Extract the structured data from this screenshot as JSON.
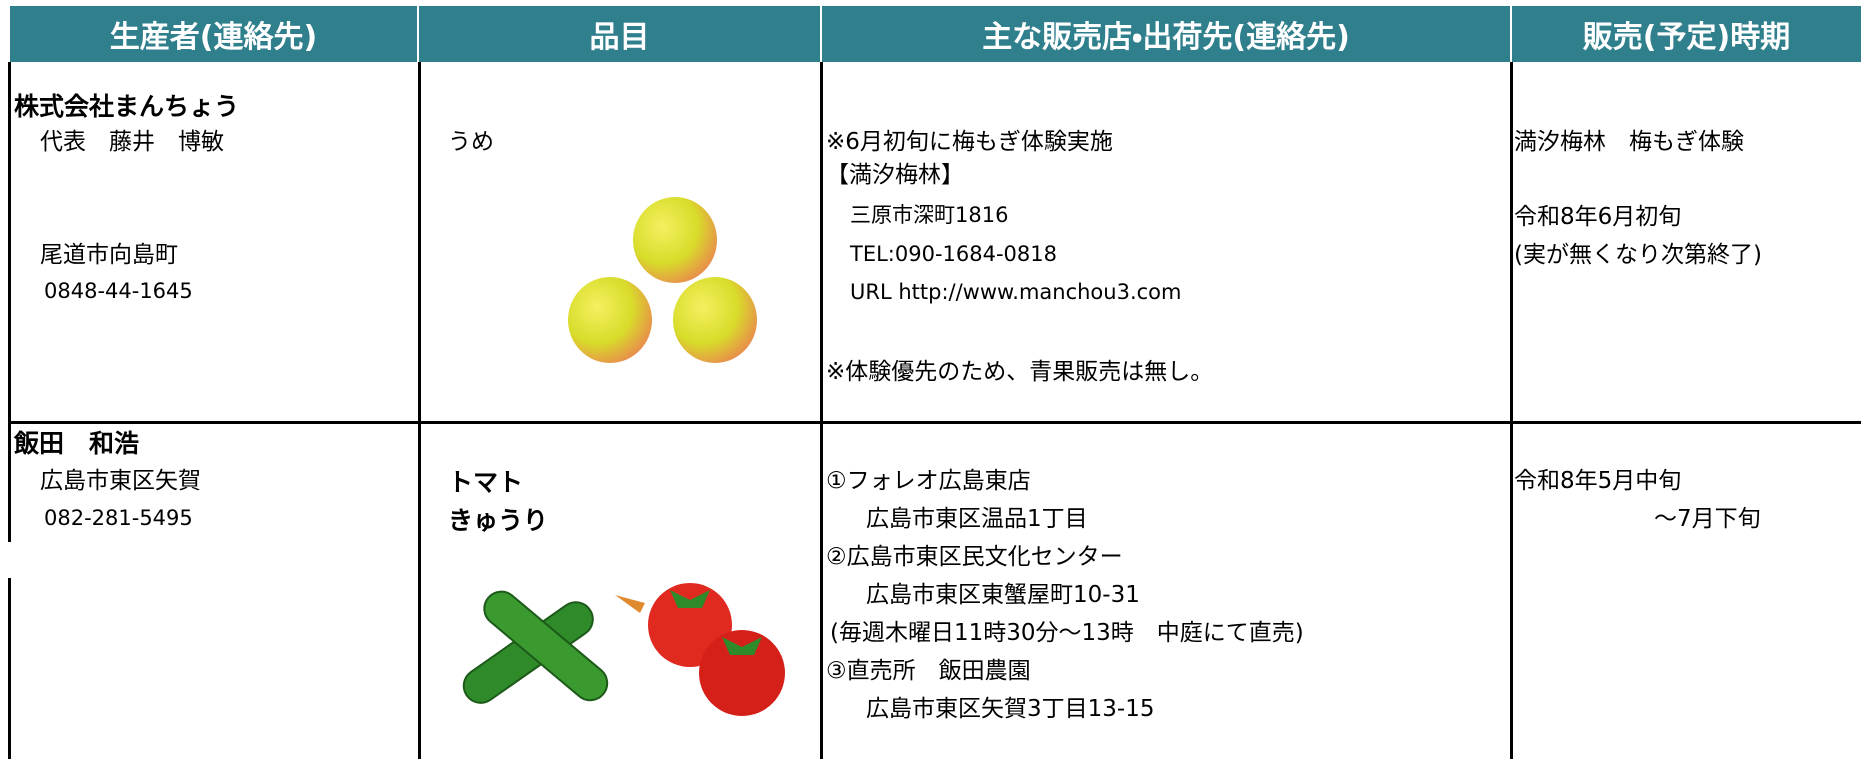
{
  "table": {
    "header": [
      "生産者(連絡先)",
      "品目",
      "主な販売店・出荷先(連絡先)",
      "販売(予定)時期"
    ],
    "rows": [
      {
        "producer": [
          "株式会社まんちょう",
          "代表　藤井　博敏",
          "尾道市向島町",
          "0848-44-1645"
        ],
        "items": [
          "うめ"
        ],
        "stores": [
          "※6月初旬に梅もぎ体験実施",
          "【満汐梅林】",
          "三原市深町1816",
          "TEL:090-1684-0818",
          "URL http://www.manchou3.com",
          "※体験優先のため、青果販売は無し。"
        ],
        "period": [
          "満汐梅林　梅もぎ体験",
          "令和8年6月初旬",
          "(実が無くなり次第終了)"
        ]
      },
      {
        "producer": [
          "飯田　和浩",
          "広島市東区矢賀",
          "082-281-5495"
        ],
        "items": [
          "トマト",
          "きゅうり"
        ],
        "stores": [
          "①フォレオ広島東店",
          "広島市東区温品1丁目",
          "②広島市東区民文化センター",
          "広島市東区東蟹屋町10-31",
          "(毎週木曜日11時30分～13時　中庭にて直売)",
          "③直売所　飯田農園",
          "広島市東区矢賀3丁目13-15"
        ],
        "period": [
          "令和8年5月中旬",
          "～7月下旬"
        ]
      }
    ]
  }
}
